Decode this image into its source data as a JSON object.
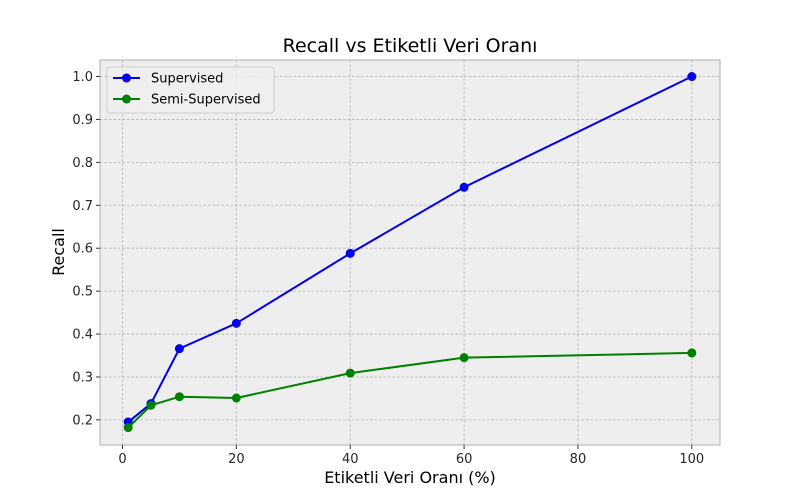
{
  "chart_data": {
    "type": "line",
    "title": "Recall vs Etiketli Veri Oranı",
    "xlabel": "Etiketli Veri Oranı (%)",
    "ylabel": "Recall",
    "xlim": [
      -3.95,
      104.95
    ],
    "ylim": [
      0.1415,
      1.0385
    ],
    "xticks": [
      0,
      20,
      40,
      60,
      80,
      100
    ],
    "yticks": [
      0.2,
      0.3,
      0.4,
      0.5,
      0.6,
      0.7,
      0.8,
      0.9,
      1.0
    ],
    "ytick_labels": [
      "0.2",
      "0.3",
      "0.4",
      "0.5",
      "0.6",
      "0.7",
      "0.8",
      "0.9",
      "1.0"
    ],
    "grid": true,
    "legend": "top-left",
    "x": [
      1,
      5,
      10,
      20,
      40,
      60,
      100
    ],
    "series": [
      {
        "name": "Supervised",
        "color": "#0000ee",
        "values": [
          0.195,
          0.238,
          0.366,
          0.425,
          0.588,
          0.742,
          1.0
        ]
      },
      {
        "name": "Semi-Supervised",
        "color": "#008000",
        "values": [
          0.182,
          0.234,
          0.254,
          0.251,
          0.309,
          0.345,
          0.356
        ]
      }
    ]
  }
}
